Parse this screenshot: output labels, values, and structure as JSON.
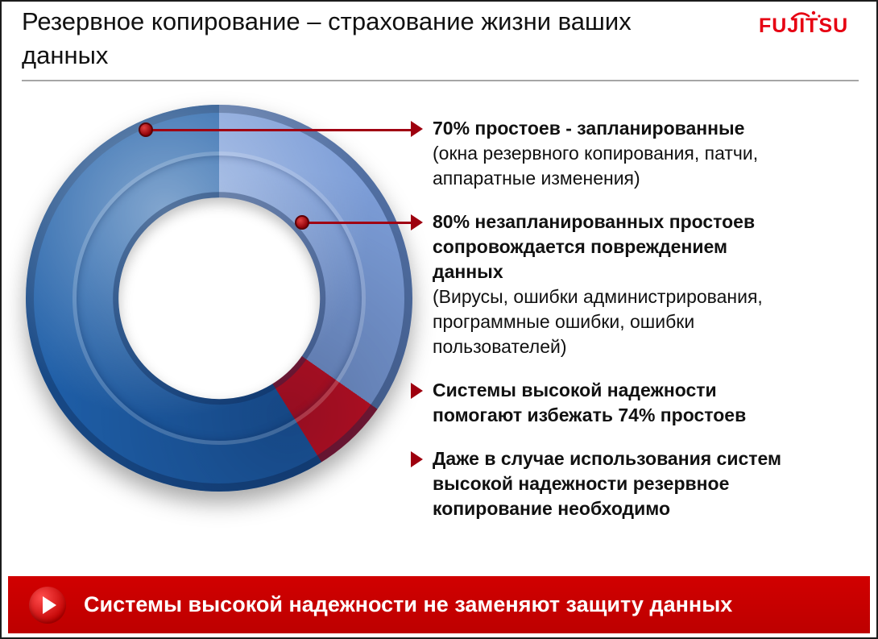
{
  "header": {
    "title": "Резервное копирование – страхование жизни ваших\nданных",
    "logo_text": "FUJITSU"
  },
  "bullets": [
    {
      "bold": "70% простоев - запланированные",
      "normal": "(окна резервного копирования, патчи,\nаппаратные изменения)"
    },
    {
      "bold": "80% незапланированных простоев\nсопровождается повреждением\nданных",
      "normal": "(Вирусы, ошибки администрирования,\nпрограммные ошибки, ошибки\nпользователей)"
    },
    {
      "bold": "Системы высокой надежности\nпомогают избежать 74% простоев",
      "normal": ""
    },
    {
      "bold": "Даже в случае использования систем\nвысокой надежности резервное\nкопирование необходимо",
      "normal": ""
    }
  ],
  "banner": {
    "text": "Системы высокой надежности не заменяют защиту данных",
    "icon": "play-icon"
  },
  "colors": {
    "banner_red": "#c80000",
    "callout_red": "#a00012",
    "bullet_marker_red": "#9e000f",
    "logo_red": "#e60012",
    "rule_gray": "#a6a6a6",
    "donut_dark_blue": "#1f5fa8",
    "donut_light_blue": "#7d9ed8",
    "donut_red": "#cf1020"
  },
  "chart_data": {
    "type": "pie",
    "subtype": "3d-donut",
    "hole_ratio": 0.52,
    "start_angle_deg": 0,
    "segments": [
      {
        "color": "#7d9ed8",
        "sweep_deg": 125
      },
      {
        "color": "#cf1020",
        "sweep_deg": 23
      },
      {
        "color": "#1f5fa8",
        "sweep_deg": 212
      }
    ],
    "annotations": [
      "70% простоев - запланированные",
      "80% незапланированных простоев сопровождается повреждением данных"
    ],
    "legend": "none",
    "title": ""
  }
}
